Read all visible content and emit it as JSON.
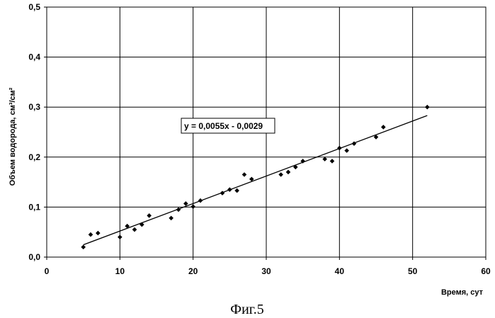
{
  "chart_data": {
    "type": "scatter",
    "title": "",
    "xlabel": "Время, сут",
    "ylabel": "Объем водорода, см³/см²",
    "xlim": [
      0,
      60
    ],
    "ylim": [
      0,
      0.5
    ],
    "x_ticks": [
      "0",
      "10",
      "20",
      "30",
      "40",
      "50",
      "60"
    ],
    "y_ticks": [
      "0,0",
      "0,1",
      "0,2",
      "0,3",
      "0,4",
      "0,5"
    ],
    "grid": true,
    "legend": "none",
    "marker": "diamond",
    "marker_color": "#000000",
    "series": [
      {
        "x": [
          5,
          6,
          7,
          10,
          11,
          12,
          13,
          14,
          17,
          18,
          19,
          20,
          21,
          24,
          25,
          26,
          27,
          28,
          32,
          33,
          34,
          35,
          38,
          39,
          40,
          41,
          42,
          45,
          46,
          52
        ],
        "y": [
          0.02,
          0.045,
          0.048,
          0.04,
          0.062,
          0.055,
          0.065,
          0.083,
          0.078,
          0.095,
          0.107,
          0.101,
          0.113,
          0.128,
          0.135,
          0.133,
          0.165,
          0.156,
          0.165,
          0.17,
          0.18,
          0.192,
          0.196,
          0.192,
          0.218,
          0.213,
          0.227,
          0.24,
          0.26,
          0.3
        ]
      }
    ],
    "trendline": {
      "slope": 0.0055,
      "intercept": -0.0029,
      "x_range": [
        5,
        52
      ],
      "label": "y = 0,0055x - 0,0029"
    }
  },
  "caption": "Фиг.5"
}
